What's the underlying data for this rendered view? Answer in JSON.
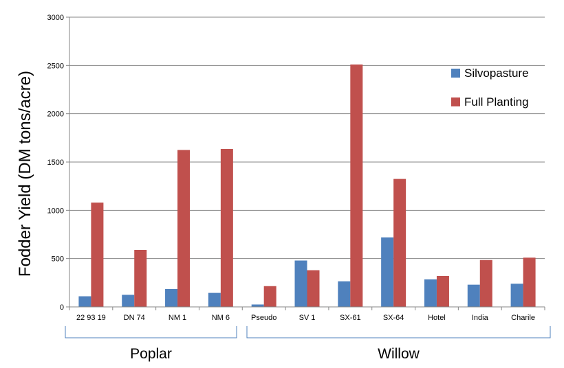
{
  "chart_data": {
    "type": "bar",
    "title": "",
    "xlabel": "",
    "ylabel": "Fodder Yield (DM tons/acre)",
    "ylim": [
      0,
      3000
    ],
    "yticks": [
      0,
      500,
      1000,
      1500,
      2000,
      2500,
      3000
    ],
    "grid": true,
    "legend_position": "top-right",
    "categories": [
      "22 93 19",
      "DN 74",
      "NM 1",
      "NM 6",
      "Pseudo",
      "SV 1",
      "SX-61",
      "SX-64",
      "Hotel",
      "India",
      "Charile"
    ],
    "series": [
      {
        "name": "Silvopasture",
        "color": "#4F81BD",
        "values": [
          110,
          125,
          185,
          145,
          25,
          480,
          265,
          720,
          285,
          230,
          240
        ]
      },
      {
        "name": "Full Planting",
        "color": "#C0504D",
        "values": [
          1080,
          590,
          1625,
          1635,
          215,
          380,
          2510,
          1325,
          320,
          485,
          510
        ]
      }
    ],
    "groups": [
      {
        "label": "Poplar",
        "categories": [
          "22 93 19",
          "DN 74",
          "NM 1",
          "NM 6"
        ]
      },
      {
        "label": "Willow",
        "categories": [
          "Pseudo",
          "SV 1",
          "SX-61",
          "SX-64",
          "Hotel",
          "India",
          "Charile"
        ]
      }
    ]
  }
}
